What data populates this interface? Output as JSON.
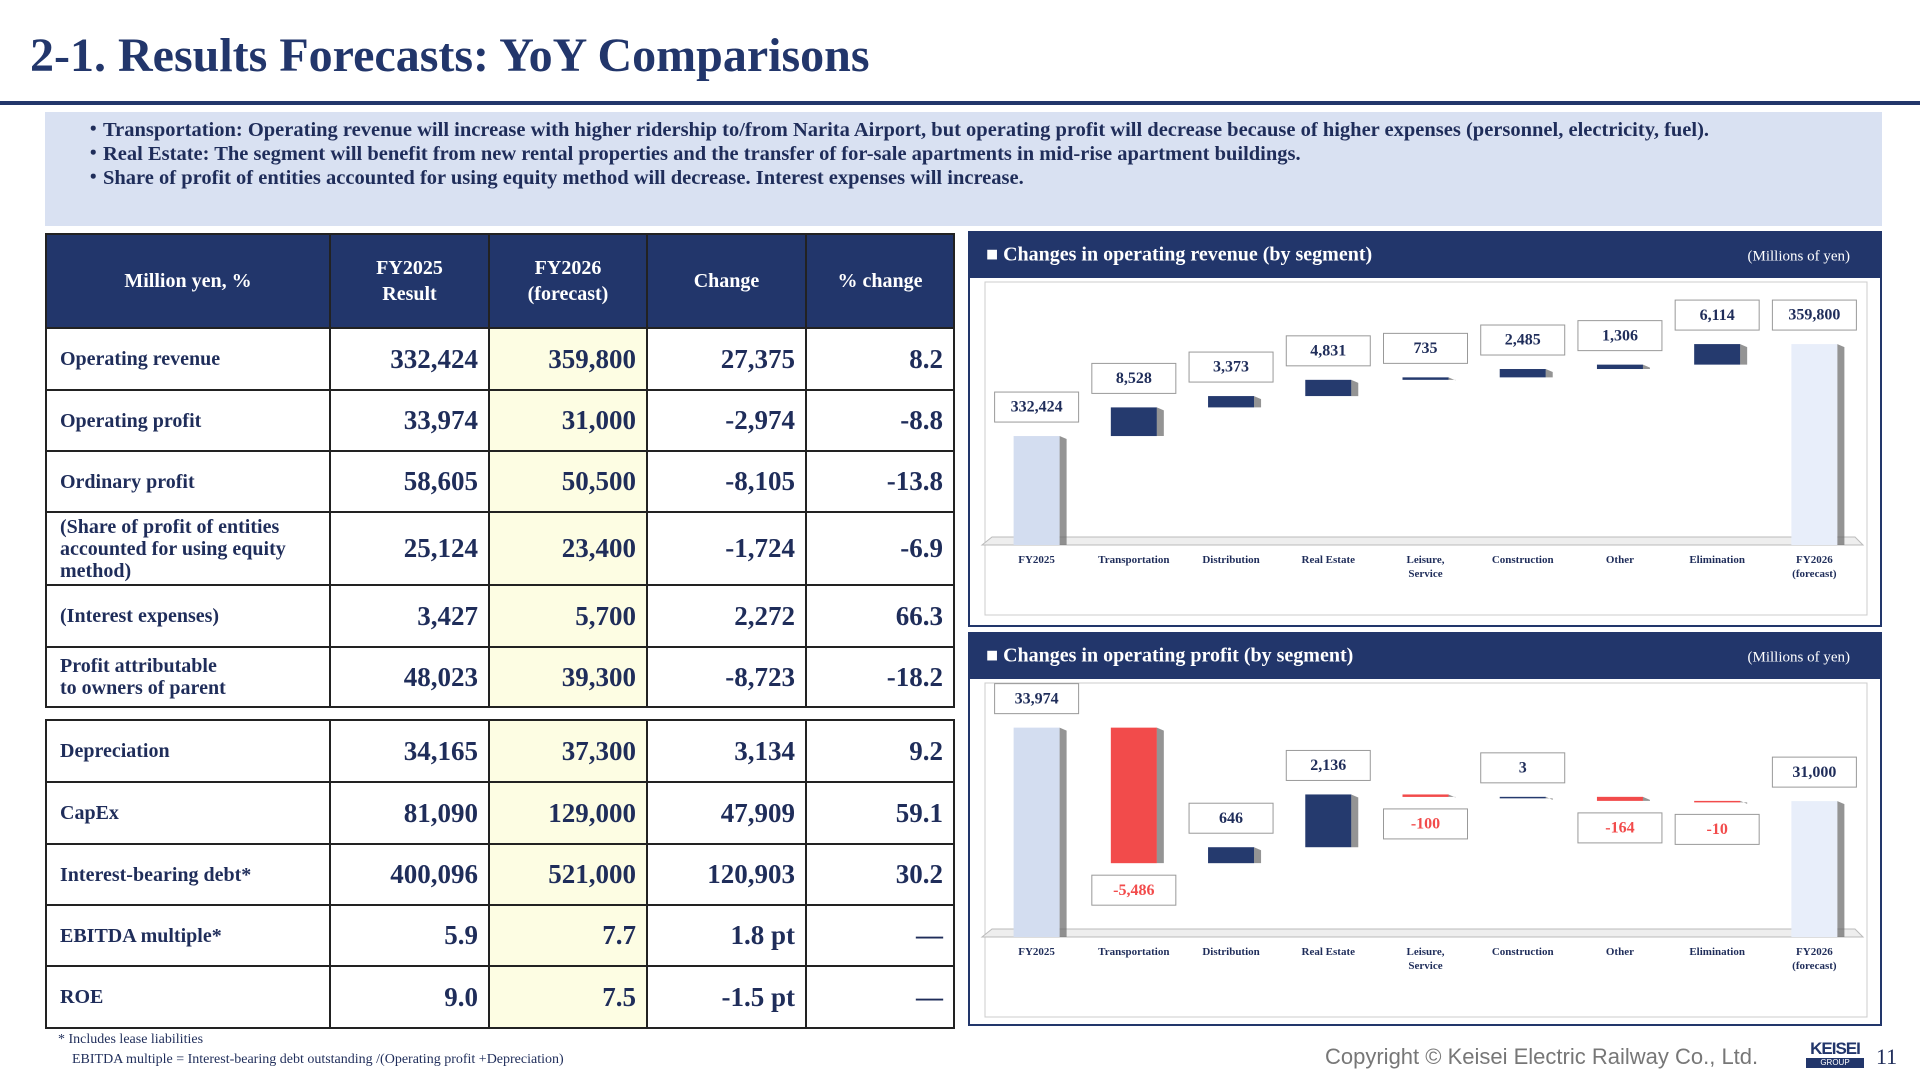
{
  "header": {
    "title": "2-1. Results Forecasts: YoY Comparisons"
  },
  "bullets": [
    "Transportation: Operating revenue will increase with higher ridership to/from Narita Airport, but operating profit will decrease because of higher expenses (personnel, electricity, fuel).",
    "Real Estate: The segment will benefit from new rental properties and the transfer of for-sale apartments in mid-rise apartment buildings.",
    "Share of profit of entities accounted for using equity method will decrease. Interest expenses will increase."
  ],
  "table": {
    "header": [
      "Million yen, %",
      "FY2025\nResult",
      "FY2026\n(forecast)",
      "Change",
      "% change"
    ],
    "rows": [
      [
        "Operating revenue",
        "332,424",
        "359,800",
        "27,375",
        "8.2"
      ],
      [
        "Operating profit",
        "33,974",
        "31,000",
        "-2,974",
        "-8.8"
      ],
      [
        "Ordinary profit",
        "58,605",
        "50,500",
        "-8,105",
        "-13.8"
      ],
      [
        "(Share of profit of entities accounted for using equity method)",
        "25,124",
        "23,400",
        "-1,724",
        "-6.9"
      ],
      [
        "(Interest expenses)",
        "3,427",
        "5,700",
        "2,272",
        "66.3"
      ],
      [
        "Profit attributable\nto owners of parent",
        "48,023",
        "39,300",
        "-8,723",
        "-18.2"
      ],
      [
        "Depreciation",
        "34,165",
        "37,300",
        "3,134",
        "9.2"
      ],
      [
        "CapEx",
        "81,090",
        "129,000",
        "47,909",
        "59.1"
      ],
      [
        "Interest-bearing debt*",
        "400,096",
        "521,000",
        "120,903",
        "30.2"
      ],
      [
        "EBITDA multiple*",
        "5.9",
        "7.7",
        "1.8 pt",
        "—"
      ],
      [
        "ROE",
        "9.0",
        "7.5",
        "-1.5 pt",
        "—"
      ]
    ]
  },
  "footnotes": [
    "* Includes lease liabilities",
    "EBITDA multiple = Interest-bearing debt outstanding /(Operating profit +Depreciation)"
  ],
  "footer": {
    "copyright": "Copyright ©  Keisei Electric Railway Co., Ltd.",
    "logo": "KEISEI",
    "logo_sub": "GROUP",
    "page": "11"
  },
  "chart_data": [
    {
      "type": "waterfall",
      "title": "■ Changes in operating revenue (by segment)",
      "unit": "(Millions of yen)",
      "categories": [
        "FY2025",
        "Transportation",
        "Distribution",
        "Real Estate",
        "Leisure,\nService",
        "Construction",
        "Other",
        "Elimination",
        "FY2026\n(forecast)"
      ],
      "values": [
        332424,
        8528,
        3373,
        4831,
        735,
        2485,
        1306,
        6114,
        359800
      ],
      "value_labels": [
        "332,424",
        "8,528",
        "3,373",
        "4,831",
        "735",
        "2,485",
        "1,306",
        "6,114",
        "359,800"
      ],
      "ylim": [
        300000,
        375000
      ],
      "colors": {
        "start": "#d3ddf0",
        "end": "#e8eefa",
        "increase": "#253a6e",
        "decrease": "#f24b4b"
      }
    },
    {
      "type": "waterfall",
      "title": "■ Changes in operating profit (by segment)",
      "unit": "(Millions of yen)",
      "categories": [
        "FY2025",
        "Transportation",
        "Distribution",
        "Real Estate",
        "Leisure,\nService",
        "Construction",
        "Other",
        "Elimination",
        "FY2026\n(forecast)"
      ],
      "values": [
        33974,
        -5486,
        646,
        2136,
        -100,
        3,
        -164,
        -10,
        31000
      ],
      "value_labels": [
        "33,974",
        "-5,486",
        "646",
        "2,136",
        "-100",
        "3",
        "-164",
        "-10",
        "31,000"
      ],
      "ylim": [
        25500,
        35700
      ],
      "colors": {
        "start": "#d3ddf0",
        "end": "#e8eefa",
        "increase": "#253a6e",
        "decrease": "#f24b4b"
      }
    }
  ]
}
